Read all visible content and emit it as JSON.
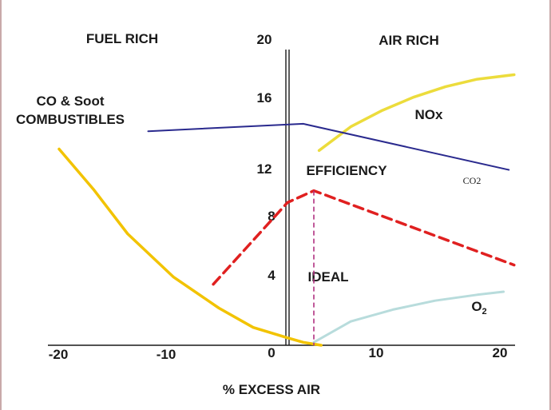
{
  "chart_data": {
    "type": "line",
    "xlabel": "% EXCESS AIR",
    "ylabel": "",
    "xlim": [
      -20,
      20
    ],
    "ylim": [
      0,
      20
    ],
    "x_ticks": [
      "-20",
      "-10",
      "0",
      "10",
      "20"
    ],
    "y_ticks": [
      "4",
      "8",
      "12",
      "16",
      "20"
    ],
    "region_labels": {
      "fuel_rich": "FUEL RICH",
      "air_rich": "AIR RICH"
    },
    "series": [
      {
        "id": "combustibles",
        "labels": [
          "CO & Soot",
          "COMBUSTIBLES"
        ],
        "color": "#f2c300",
        "style": "solid",
        "points": [
          [
            -20,
            13.2
          ],
          [
            -17,
            10.5
          ],
          [
            -14,
            7.5
          ],
          [
            -10,
            4.6
          ],
          [
            -6,
            2.5
          ],
          [
            -3,
            1.2
          ],
          [
            0,
            0.5
          ],
          [
            1.5,
            0.2
          ],
          [
            3.2,
            0
          ]
        ]
      },
      {
        "id": "nox",
        "label": "NOx",
        "color": "#ecdc3c",
        "style": "solid",
        "points": [
          [
            3,
            13.1
          ],
          [
            6,
            14.7
          ],
          [
            9,
            15.8
          ],
          [
            12,
            16.7
          ],
          [
            15,
            17.4
          ],
          [
            18,
            17.9
          ],
          [
            21.5,
            18.2
          ]
        ]
      },
      {
        "id": "co2",
        "label": "CO2",
        "color": "#2a2a8e",
        "style": "solid",
        "points": [
          [
            -12.2,
            14.4
          ],
          [
            1.5,
            14.9
          ],
          [
            21,
            11.8
          ]
        ]
      },
      {
        "id": "efficiency",
        "label": "EFFICIENCY",
        "color": "#e02020",
        "style": "dashed",
        "points": [
          [
            -6.5,
            4.1
          ],
          [
            0,
            9.6
          ],
          [
            2.5,
            10.4
          ],
          [
            21.5,
            5.4
          ]
        ]
      },
      {
        "id": "o2",
        "label": "O2",
        "color": "#b8dcdc",
        "style": "solid",
        "points": [
          [
            2.5,
            0.2
          ],
          [
            6,
            1.6
          ],
          [
            10,
            2.4
          ],
          [
            14,
            3.0
          ],
          [
            18,
            3.4
          ],
          [
            20.5,
            3.6
          ]
        ]
      }
    ],
    "annotations": [
      {
        "id": "ideal",
        "label": "IDEAL",
        "x": 2.5,
        "y_top": 10.4,
        "color": "#b03080",
        "style": "dashed"
      }
    ],
    "grid": false,
    "legend": "none"
  }
}
